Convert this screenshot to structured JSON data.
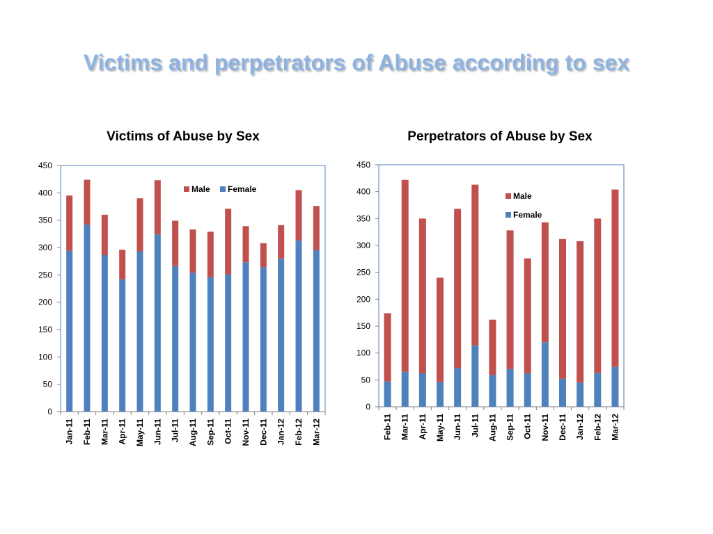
{
  "slide": {
    "title": "Victims and perpetrators of Abuse according to sex"
  },
  "colors": {
    "title": "#8db3e2",
    "male": "#c0504d",
    "female": "#4f81bd",
    "plot_border": "#4f81bd"
  },
  "chart_data": [
    {
      "type": "bar",
      "stacked": true,
      "title": "Victims of Abuse by Sex",
      "xlabel": "",
      "ylabel": "",
      "ylim": [
        0,
        450
      ],
      "yticks": [
        0,
        50,
        100,
        150,
        200,
        250,
        300,
        350,
        400,
        450
      ],
      "grid": false,
      "legend": {
        "placement": "top-right",
        "orientation": "horizontal",
        "order": [
          "Male",
          "Female"
        ]
      },
      "categories": [
        "Jan-11",
        "Feb-11",
        "Mar-11",
        "Apr-11",
        "May-11",
        "Jun-11",
        "Jul-11",
        "Aug-11",
        "Sep-11",
        "Oct-11",
        "Nov-11",
        "Dec-11",
        "Jan-12",
        "Feb-12",
        "Mar-12"
      ],
      "series": [
        {
          "name": "Female",
          "color": "#4f81bd",
          "values": [
            294,
            342,
            286,
            242,
            293,
            324,
            266,
            254,
            246,
            251,
            273,
            264,
            280,
            313,
            295
          ]
        },
        {
          "name": "Male",
          "color": "#c0504d",
          "values": [
            101,
            82,
            74,
            54,
            97,
            99,
            83,
            79,
            83,
            120,
            66,
            44,
            61,
            92,
            81
          ]
        }
      ]
    },
    {
      "type": "bar",
      "stacked": true,
      "title": "Perpetrators of Abuse by Sex",
      "xlabel": "",
      "ylabel": "",
      "ylim": [
        0,
        450
      ],
      "yticks": [
        0,
        50,
        100,
        150,
        200,
        250,
        300,
        350,
        400,
        450
      ],
      "grid": false,
      "legend": {
        "placement": "top-right",
        "orientation": "vertical",
        "order": [
          "Male",
          "Female"
        ]
      },
      "categories": [
        "Feb-11",
        "Mar-11",
        "Apr-11",
        "May-11",
        "Jun-11",
        "Jul-11",
        "Aug-11",
        "Sep-11",
        "Oct-11",
        "Nov-11",
        "Dec-11",
        "Jan-12",
        "Feb-12",
        "Mar-12"
      ],
      "series": [
        {
          "name": "Female",
          "color": "#4f81bd",
          "values": [
            47,
            65,
            62,
            46,
            72,
            114,
            59,
            70,
            62,
            120,
            52,
            45,
            63,
            74
          ]
        },
        {
          "name": "Male",
          "color": "#c0504d",
          "values": [
            127,
            357,
            288,
            194,
            296,
            299,
            103,
            258,
            214,
            223,
            260,
            263,
            287,
            330
          ]
        }
      ]
    }
  ]
}
